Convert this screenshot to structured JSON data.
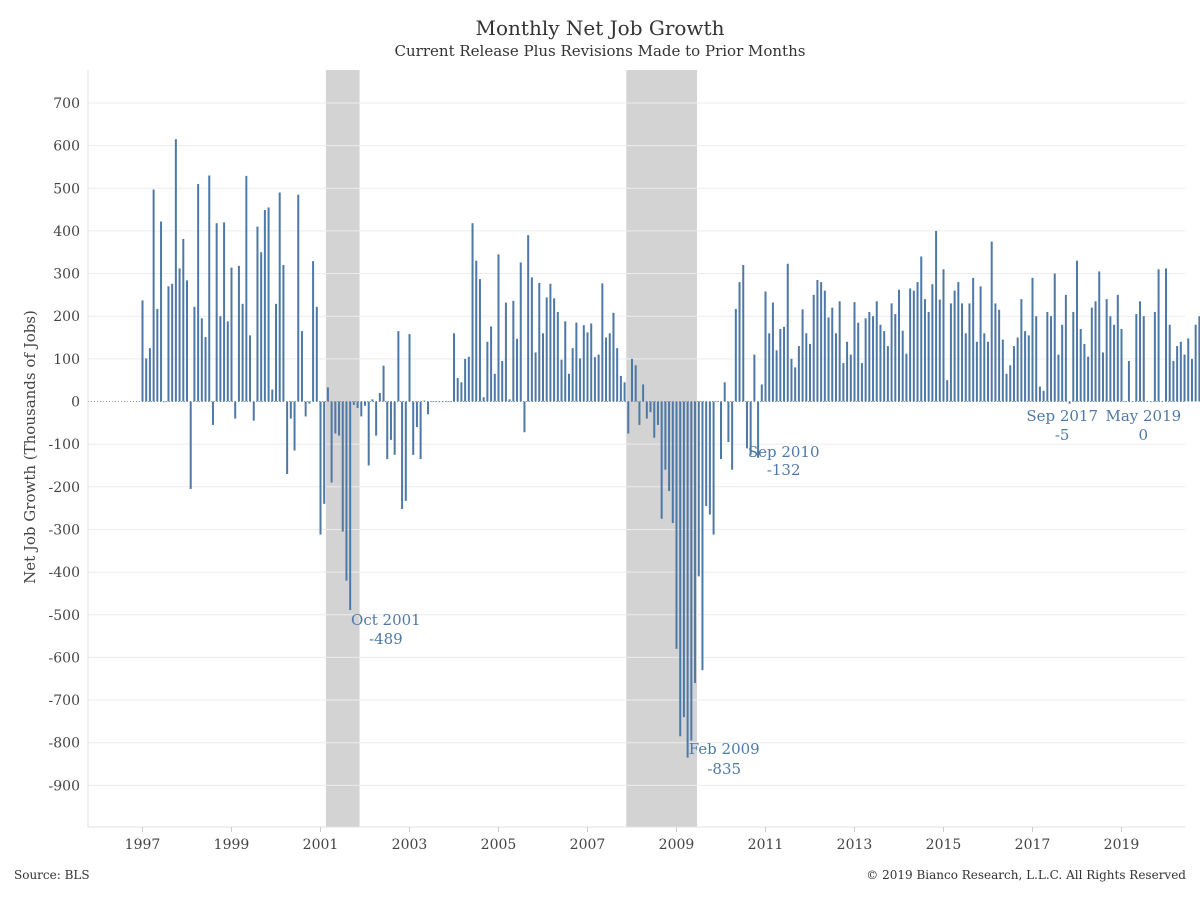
{
  "header": {
    "title": "Monthly Net Job Growth",
    "subtitle": "Current Release Plus Revisions Made to Prior Months"
  },
  "footer": {
    "source": "Source: BLS",
    "copyright": "© 2019 Bianco Research, L.L.C. All Rights Reserved"
  },
  "colors": {
    "bar": "#4e79a7",
    "annotation": "#4e79a7",
    "recession": "#d3d3d3",
    "grid": "#ececec"
  },
  "chart_data": {
    "type": "bar",
    "ylabel": "Net Job Growth (Thousands of Jobs)",
    "ylim": [
      -1000,
      780
    ],
    "yticks": [
      700,
      600,
      500,
      400,
      300,
      200,
      100,
      0,
      -100,
      -200,
      -300,
      -400,
      -500,
      -600,
      -700,
      -800,
      -900
    ],
    "xticks": [
      "1997",
      "1999",
      "2001",
      "2003",
      "2005",
      "2007",
      "2009",
      "2011",
      "2013",
      "2015",
      "2017",
      "2019"
    ],
    "x_start": "1997-01",
    "x_end": "2019-05",
    "grid": true,
    "recessions": [
      {
        "start": "2001-03",
        "end": "2001-11"
      },
      {
        "start": "2007-12",
        "end": "2009-06"
      }
    ],
    "annotations": [
      {
        "date": "2001-10",
        "label": "Oct 2001",
        "value": "-489"
      },
      {
        "date": "2009-02",
        "label": "Feb 2009",
        "value": "-835"
      },
      {
        "date": "2010-09",
        "label": "Sep 2010",
        "value": "-132"
      },
      {
        "date": "2017-09",
        "label": "Sep 2017",
        "value": "-5"
      },
      {
        "date": "2019-05",
        "label": "May 2019",
        "value": "0"
      }
    ],
    "series": [
      {
        "values": [
          237,
          101,
          125,
          497,
          217,
          422,
          0,
          270,
          276,
          615,
          312,
          381,
          284,
          -205,
          222,
          510,
          195,
          151,
          530,
          -55,
          418,
          200,
          420,
          188,
          314,
          -40,
          318,
          229,
          529,
          155,
          -45,
          410,
          350,
          449,
          455,
          28,
          229,
          490,
          320,
          -170,
          -40,
          -115,
          485,
          165,
          -35,
          -5,
          329,
          222,
          -312,
          -240,
          33,
          -190,
          -75,
          -80,
          -305,
          -420,
          -489,
          -8,
          -15,
          -35,
          -10,
          -150,
          5,
          -80,
          20,
          84,
          -135,
          -90,
          -125,
          165,
          -252,
          -233,
          158,
          -125,
          -60,
          -135,
          2,
          -30,
          0,
          0,
          0,
          0,
          0,
          0,
          160,
          55,
          45,
          100,
          105,
          418,
          330,
          287,
          10,
          140,
          176,
          65,
          345,
          95,
          232,
          5,
          236,
          147,
          326,
          -72,
          390,
          291,
          115,
          278,
          160,
          244,
          276,
          242,
          210,
          98,
          188,
          65,
          125,
          185,
          101,
          179,
          162,
          183,
          104,
          110,
          277,
          150,
          160,
          208,
          125,
          60,
          45,
          -75,
          100,
          85,
          -55,
          40,
          -40,
          -25,
          -85,
          -55,
          -275,
          -160,
          -210,
          -285,
          -580,
          -785,
          -740,
          -835,
          -795,
          -660,
          -410,
          -630,
          -245,
          -265,
          -312,
          0,
          -135,
          45,
          -95,
          -160,
          217,
          280,
          320,
          -110,
          -125,
          110,
          -132,
          40,
          258,
          160,
          232,
          120,
          170,
          175,
          323,
          100,
          80,
          130,
          216,
          160,
          135,
          250,
          285,
          280,
          260,
          197,
          220,
          160,
          235,
          90,
          140,
          110,
          233,
          185,
          90,
          195,
          210,
          200,
          235,
          180,
          165,
          130,
          230,
          205,
          262,
          166,
          112,
          265,
          260,
          280,
          340,
          240,
          210,
          275,
          400,
          239,
          310,
          50,
          230,
          260,
          280,
          230,
          160,
          230,
          290,
          140,
          270,
          160,
          140,
          375,
          230,
          215,
          145,
          65,
          85,
          130,
          150,
          240,
          165,
          155,
          290,
          200,
          35,
          25,
          210,
          200,
          300,
          110,
          180,
          250,
          -5,
          210,
          330,
          170,
          135,
          105,
          220,
          235,
          305,
          115,
          240,
          200,
          180,
          250,
          170,
          0,
          95,
          0,
          205,
          235,
          200,
          0,
          0,
          210,
          310,
          0,
          312,
          180,
          95,
          130,
          140,
          110,
          148,
          100,
          180,
          200,
          170,
          210,
          0,
          0,
          0,
          0,
          0
        ]
      }
    ]
  }
}
